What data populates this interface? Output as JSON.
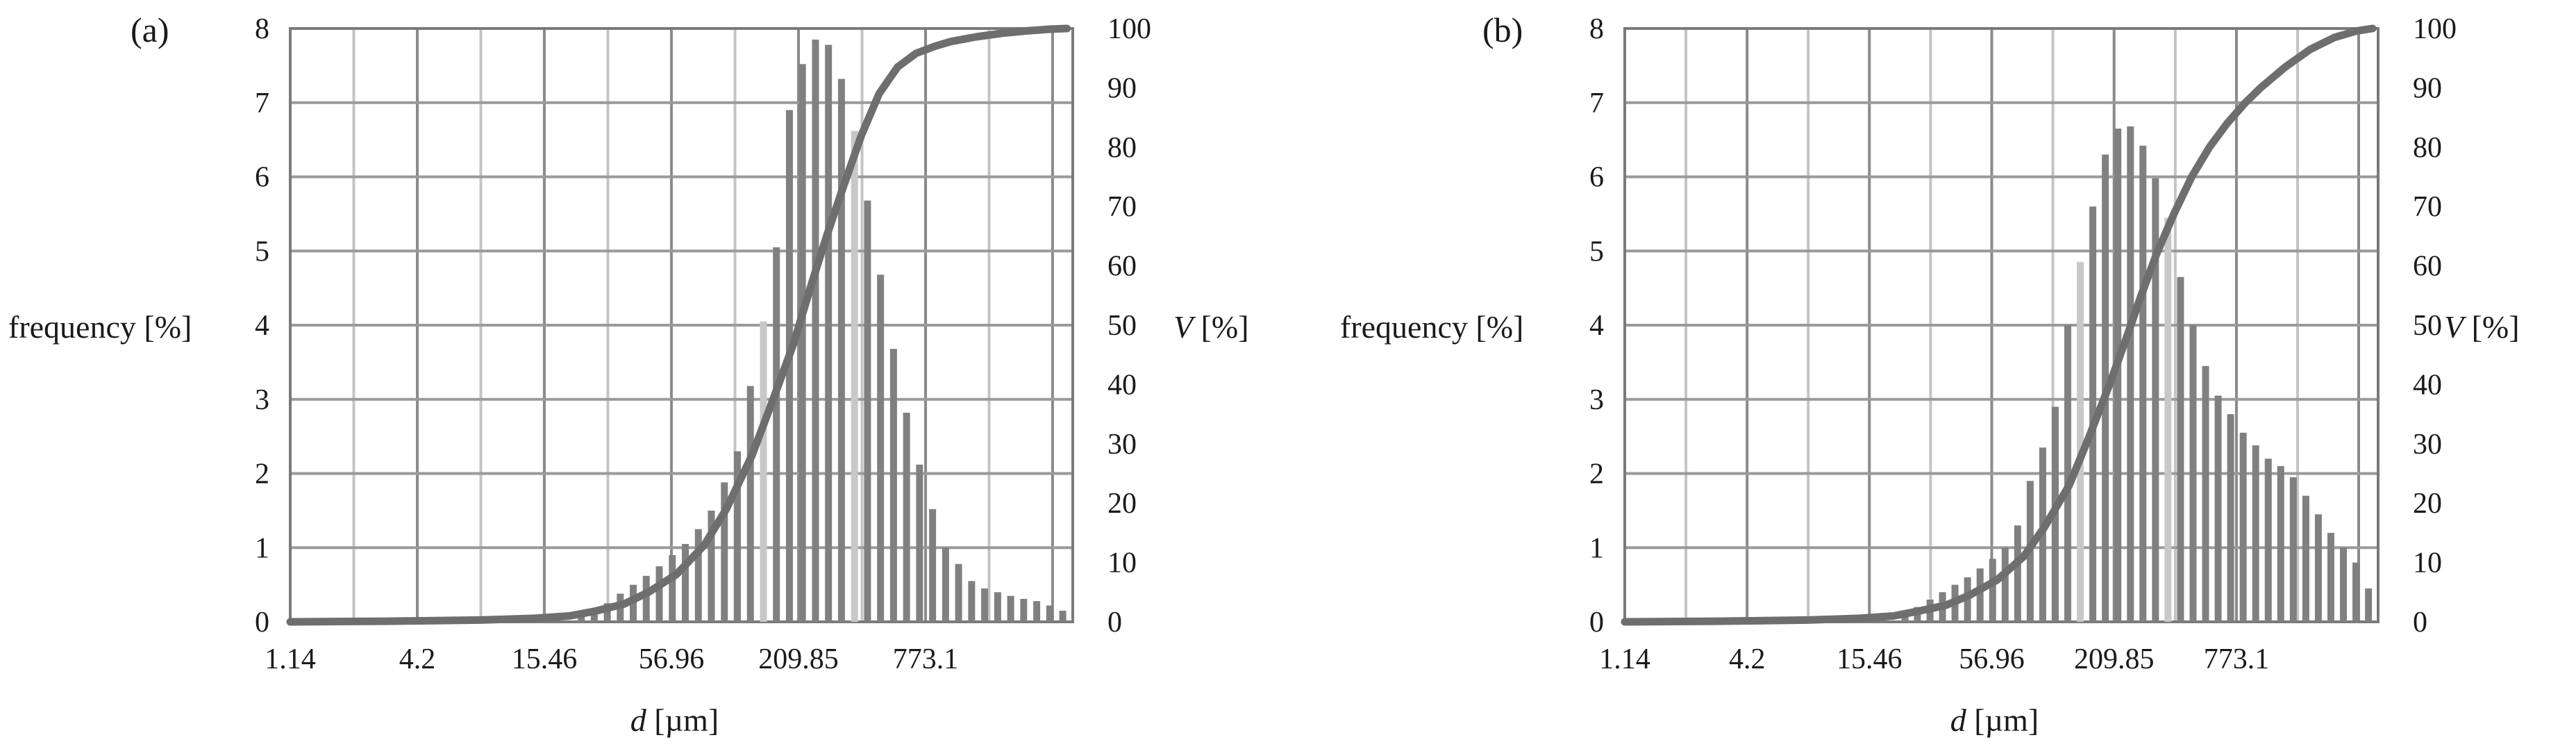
{
  "chart_data": [
    {
      "panel_label": "(a)",
      "type": "bar",
      "x_scale": "log",
      "xlabel_var": "d",
      "xlabel_unit": " [µm]",
      "ylabel_left": "frequency [%]",
      "ylabel_right_var": "V",
      "ylabel_right_unit": " [%]",
      "ylim_left": [
        0,
        8
      ],
      "ylim_right": [
        0,
        100
      ],
      "yticks_left": [
        "0",
        "1",
        "2",
        "3",
        "4",
        "5",
        "6",
        "7",
        "8"
      ],
      "yticks_right": [
        "0",
        "10",
        "20",
        "30",
        "40",
        "50",
        "60",
        "70",
        "80",
        "90",
        "100"
      ],
      "xticks": [
        {
          "value": 1.14,
          "label": "1.14"
        },
        {
          "value": 4.2,
          "label": "4.2"
        },
        {
          "value": 15.46,
          "label": "15.46"
        },
        {
          "value": 56.96,
          "label": "56.96"
        },
        {
          "value": 209.85,
          "label": "209.85"
        },
        {
          "value": 773.1,
          "label": "773.1"
        }
      ],
      "xlim": [
        1.14,
        3500
      ],
      "grid": true,
      "bar_color": "#808080",
      "highlight_color": "#c8c8c8",
      "curve_color": "#6e6e6e",
      "series": [
        {
          "kind": "bar",
          "x": [
            22.6,
            25.8,
            29.5,
            33.7,
            38.5,
            44.0,
            50.3,
            57.5,
            65.7,
            75.1,
            85.8,
            98.1,
            112.1,
            128.1,
            146.4,
            167.3,
            191.2,
            218.5,
            249.8,
            285.4,
            326.2,
            372.8,
            426.1,
            486.9,
            556.5,
            636.0,
            726.8,
            830.7,
            949.3,
            1085,
            1240,
            1417,
            1620,
            1851,
            2115,
            2418,
            2763,
            3158
          ],
          "values": [
            0.08,
            0.15,
            0.25,
            0.38,
            0.5,
            0.62,
            0.75,
            0.9,
            1.05,
            1.25,
            1.5,
            1.88,
            2.3,
            3.18,
            4.05,
            5.05,
            6.9,
            7.52,
            7.85,
            7.78,
            7.32,
            6.62,
            5.68,
            4.68,
            3.68,
            2.82,
            2.12,
            1.52,
            1.0,
            0.78,
            0.55,
            0.45,
            0.4,
            0.35,
            0.31,
            0.28,
            0.22,
            0.15
          ]
        },
        {
          "kind": "line",
          "name": "V",
          "x": [
            1.14,
            3,
            8,
            14,
            20,
            26,
            35,
            45,
            60,
            80,
            100,
            130,
            160,
            200,
            240,
            280,
            330,
            400,
            480,
            580,
            700,
            850,
            1000,
            1300,
            1700,
            2200,
            2800,
            3300
          ],
          "values": [
            0,
            0.1,
            0.3,
            0.6,
            1,
            1.8,
            3,
            5,
            8,
            13,
            19,
            28,
            37,
            47,
            57,
            65,
            73,
            82,
            89,
            93.5,
            95.8,
            97,
            97.8,
            98.6,
            99.2,
            99.6,
            99.9,
            100
          ]
        }
      ]
    },
    {
      "panel_label": "(b)",
      "type": "bar",
      "x_scale": "log",
      "xlabel_var": "d",
      "xlabel_unit": " [µm]",
      "ylabel_left": "frequency [%]",
      "ylabel_right_var": "V",
      "ylabel_right_unit": " [%]",
      "ylim_left": [
        0,
        8
      ],
      "ylim_right": [
        0,
        100
      ],
      "yticks_left": [
        "0",
        "1",
        "2",
        "3",
        "4",
        "5",
        "6",
        "7",
        "8"
      ],
      "yticks_right": [
        "0",
        "10",
        "20",
        "30",
        "40",
        "50",
        "60",
        "70",
        "80",
        "90",
        "100"
      ],
      "xticks": [
        {
          "value": 1.14,
          "label": "1.14"
        },
        {
          "value": 4.2,
          "label": "4.2"
        },
        {
          "value": 15.46,
          "label": "15.46"
        },
        {
          "value": 56.96,
          "label": "56.96"
        },
        {
          "value": 209.85,
          "label": "209.85"
        },
        {
          "value": 773.1,
          "label": "773.1"
        }
      ],
      "xlim": [
        1.14,
        3500
      ],
      "grid": true,
      "bar_color": "#808080",
      "highlight_color": "#c8c8c8",
      "curve_color": "#6e6e6e",
      "series": [
        {
          "kind": "bar",
          "x": [
            22.6,
            25.8,
            29.5,
            33.7,
            38.5,
            44.0,
            50.3,
            57.5,
            65.7,
            75.1,
            85.8,
            98.1,
            112.1,
            128.1,
            146.4,
            167.3,
            191.2,
            218.5,
            249.8,
            285.4,
            326.2,
            372.8,
            426.1,
            486.9,
            556.5,
            636.0,
            726.8,
            830.7,
            949.3,
            1085,
            1240,
            1417,
            1620,
            1851,
            2115,
            2418,
            2763,
            3158
          ],
          "values": [
            0.1,
            0.2,
            0.3,
            0.4,
            0.5,
            0.6,
            0.72,
            0.85,
            1.0,
            1.3,
            1.9,
            2.35,
            2.9,
            4.0,
            4.85,
            5.6,
            6.3,
            6.65,
            6.68,
            6.42,
            5.98,
            5.45,
            4.65,
            4.0,
            3.45,
            3.05,
            2.8,
            2.55,
            2.38,
            2.2,
            2.1,
            1.95,
            1.7,
            1.45,
            1.2,
            1.0,
            0.8,
            0.45
          ]
        },
        {
          "kind": "line",
          "name": "V",
          "x": [
            1.14,
            3,
            8,
            14,
            20,
            26,
            35,
            45,
            60,
            80,
            100,
            130,
            160,
            200,
            240,
            280,
            330,
            400,
            480,
            580,
            700,
            850,
            1000,
            1300,
            1700,
            2200,
            2800,
            3300
          ],
          "values": [
            0,
            0.1,
            0.3,
            0.6,
            1,
            1.8,
            2.8,
            4.5,
            7,
            11,
            16,
            23,
            31,
            40,
            48,
            55,
            62,
            69,
            75,
            80,
            84,
            87.5,
            90,
            93.5,
            96.5,
            98.5,
            99.6,
            100
          ]
        }
      ]
    }
  ]
}
